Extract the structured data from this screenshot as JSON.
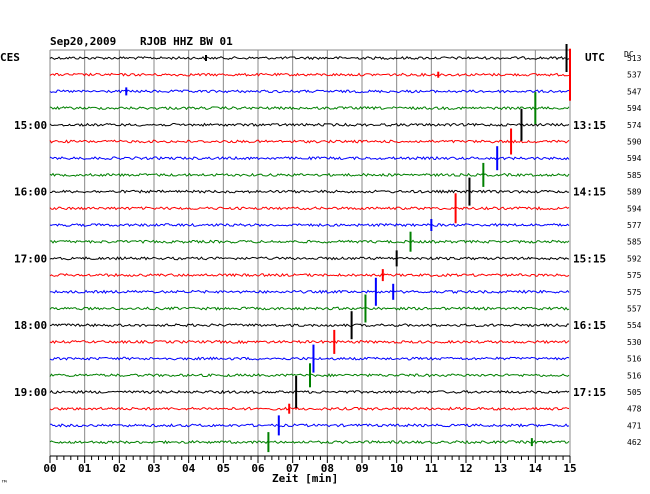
{
  "header": {
    "date": "Sep20,2009",
    "station": "RJOB HHZ BW 01",
    "left_tz": "CES",
    "right_tz": "UTC",
    "dc_label": "DC"
  },
  "footer": {
    "xlabel": "Zeit [min]",
    "corner_mark": "™"
  },
  "chart_data": {
    "type": "line",
    "title": "Sep20,2009  RJOB HHZ BW 01",
    "xlabel": "Zeit [min]",
    "ylabel": "",
    "xlim": [
      0,
      15
    ],
    "x_ticks": [
      "00",
      "01",
      "02",
      "03",
      "04",
      "05",
      "06",
      "07",
      "08",
      "09",
      "10",
      "11",
      "12",
      "13",
      "14",
      "15"
    ],
    "row_minutes": 15,
    "colors": [
      "#000000",
      "#ff0000",
      "#0000ff",
      "#008000"
    ],
    "left_hour_labels": [
      {
        "row": 4,
        "text": "15:00"
      },
      {
        "row": 8,
        "text": "16:00"
      },
      {
        "row": 12,
        "text": "17:00"
      },
      {
        "row": 16,
        "text": "18:00"
      },
      {
        "row": 20,
        "text": "19:00"
      }
    ],
    "right_hour_labels": [
      {
        "row": 4,
        "text": "13:15"
      },
      {
        "row": 8,
        "text": "14:15"
      },
      {
        "row": 12,
        "text": "15:15"
      },
      {
        "row": 16,
        "text": "16:15"
      },
      {
        "row": 20,
        "text": "17:15"
      }
    ],
    "dc_offsets": [
      513,
      537,
      547,
      594,
      574,
      590,
      594,
      585,
      589,
      594,
      577,
      585,
      592,
      575,
      575,
      557,
      554,
      530,
      516,
      516,
      505,
      478,
      471,
      462
    ],
    "events": [
      {
        "row": 0,
        "minute": 4.5,
        "amp": 3
      },
      {
        "row": 0,
        "minute": 14.9,
        "amp": 14
      },
      {
        "row": 1,
        "minute": 15.0,
        "amp": 26
      },
      {
        "row": 1,
        "minute": 11.2,
        "amp": 3
      },
      {
        "row": 2,
        "minute": 2.2,
        "amp": 4
      },
      {
        "row": 3,
        "minute": 14.0,
        "amp": 16
      },
      {
        "row": 4,
        "minute": 13.6,
        "amp": 16
      },
      {
        "row": 5,
        "minute": 13.3,
        "amp": 13
      },
      {
        "row": 6,
        "minute": 12.9,
        "amp": 12
      },
      {
        "row": 7,
        "minute": 12.5,
        "amp": 12
      },
      {
        "row": 8,
        "minute": 12.1,
        "amp": 14
      },
      {
        "row": 9,
        "minute": 11.7,
        "amp": 15
      },
      {
        "row": 10,
        "minute": 11.0,
        "amp": 6
      },
      {
        "row": 11,
        "minute": 10.4,
        "amp": 10
      },
      {
        "row": 12,
        "minute": 10.0,
        "amp": 8
      },
      {
        "row": 13,
        "minute": 9.6,
        "amp": 6
      },
      {
        "row": 14,
        "minute": 9.4,
        "amp": 14
      },
      {
        "row": 14,
        "minute": 9.9,
        "amp": 8
      },
      {
        "row": 15,
        "minute": 9.1,
        "amp": 14
      },
      {
        "row": 16,
        "minute": 8.7,
        "amp": 14
      },
      {
        "row": 17,
        "minute": 8.2,
        "amp": 12
      },
      {
        "row": 18,
        "minute": 7.6,
        "amp": 14
      },
      {
        "row": 19,
        "minute": 7.5,
        "amp": 12
      },
      {
        "row": 20,
        "minute": 7.1,
        "amp": 16
      },
      {
        "row": 21,
        "minute": 6.9,
        "amp": 5
      },
      {
        "row": 22,
        "minute": 6.6,
        "amp": 10
      },
      {
        "row": 23,
        "minute": 6.3,
        "amp": 10
      },
      {
        "row": 23,
        "minute": 13.9,
        "amp": 4
      }
    ]
  }
}
